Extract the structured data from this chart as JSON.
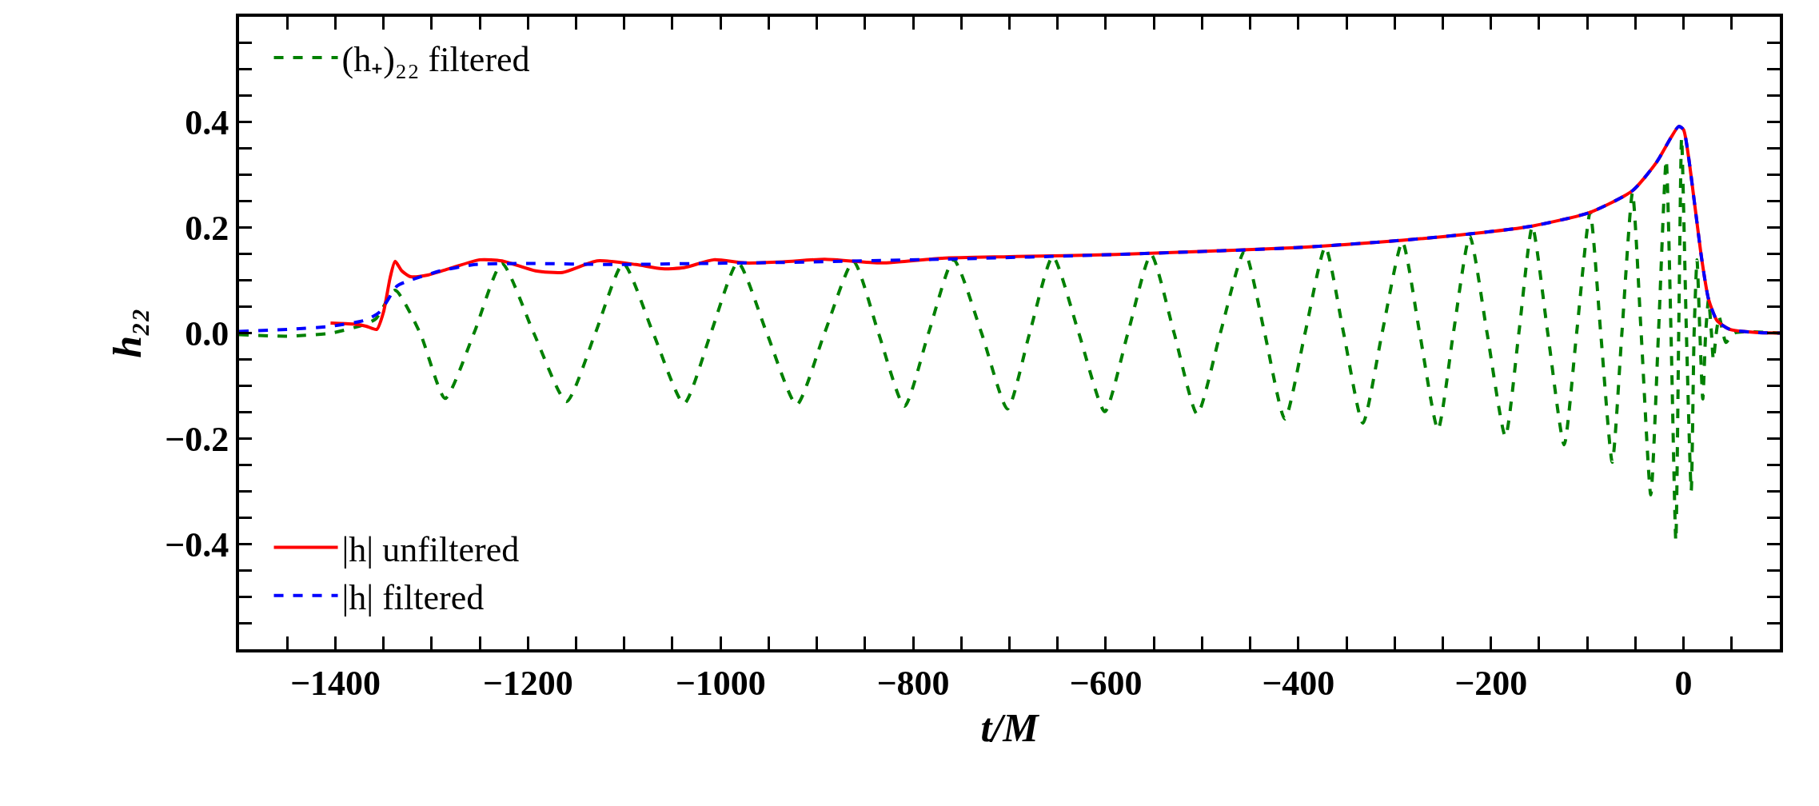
{
  "chart_data": {
    "type": "line",
    "xlabel": "t/M",
    "ylabel": "h₂₂",
    "xlim": [
      -1500,
      100
    ],
    "ylim": [
      -0.6,
      0.6
    ],
    "xticks": [
      {
        "value": -1450,
        "label": null
      },
      {
        "value": -1350,
        "label": null
      },
      {
        "value": -1300,
        "label": null
      },
      {
        "value": -1250,
        "label": null
      },
      {
        "value": -1150,
        "label": null
      },
      {
        "value": -1100,
        "label": null
      },
      {
        "value": -1050,
        "label": null
      },
      {
        "value": -950,
        "label": null
      },
      {
        "value": -900,
        "label": null
      },
      {
        "value": -850,
        "label": null
      },
      {
        "value": -750,
        "label": null
      },
      {
        "value": -700,
        "label": null
      },
      {
        "value": -650,
        "label": null
      },
      {
        "value": -550,
        "label": null
      },
      {
        "value": -500,
        "label": null
      },
      {
        "value": -450,
        "label": null
      },
      {
        "value": -350,
        "label": null
      },
      {
        "value": -300,
        "label": null
      },
      {
        "value": -250,
        "label": null
      },
      {
        "value": -150,
        "label": null
      },
      {
        "value": -100,
        "label": null
      },
      {
        "value": -50,
        "label": null
      },
      {
        "value": 50,
        "label": null
      },
      {
        "value": -1400,
        "label": "−1400"
      },
      {
        "value": -1200,
        "label": "−1200"
      },
      {
        "value": -1000,
        "label": "−1000"
      },
      {
        "value": -800,
        "label": "−800"
      },
      {
        "value": -600,
        "label": "−600"
      },
      {
        "value": -400,
        "label": "−400"
      },
      {
        "value": -200,
        "label": "−200"
      },
      0
    ],
    "yticks": [
      {
        "value": -0.55,
        "label": null
      },
      {
        "value": -0.5,
        "label": null
      },
      {
        "value": -0.45,
        "label": null
      },
      {
        "value": -0.35,
        "label": null
      },
      {
        "value": -0.3,
        "label": null
      },
      {
        "value": -0.25,
        "label": null
      },
      {
        "value": -0.15,
        "label": null
      },
      {
        "value": -0.1,
        "label": null
      },
      {
        "value": -0.05,
        "label": null
      },
      {
        "value": 0.05,
        "label": null
      },
      {
        "value": 0.1,
        "label": null
      },
      {
        "value": 0.15,
        "label": null
      },
      {
        "value": 0.25,
        "label": null
      },
      {
        "value": 0.3,
        "label": null
      },
      {
        "value": 0.35,
        "label": null
      },
      {
        "value": 0.45,
        "label": null
      },
      {
        "value": 0.5,
        "label": null
      },
      {
        "value": 0.55,
        "label": null
      },
      {
        "value": -0.4,
        "label": "−0.4"
      },
      {
        "value": -0.2,
        "label": "−0.2"
      },
      {
        "value": 0,
        "label": "0.0"
      },
      0.2,
      0.4
    ],
    "legend": "left",
    "marker": "none",
    "series": [
      {
        "name": "(h₊)₂₂ filtered",
        "color": "#008000",
        "line_style": "dashed",
        "x": [
          -1500,
          -1450,
          -1404,
          -1372,
          -1358,
          -1338,
          -1312,
          -1286,
          -1256,
          -1227,
          -1194,
          -1160,
          -1130,
          -1101,
          -1070,
          -1038,
          -1010,
          -982,
          -952,
          -921,
          -892,
          -862,
          -836,
          -809,
          -784,
          -758,
          -729,
          -702,
          -679,
          -655,
          -628,
          -601,
          -577,
          -553,
          -529,
          -505,
          -481,
          -456,
          -435,
          -414,
          -393,
          -372,
          -353,
          -333,
          -313,
          -292,
          -274,
          -255,
          -239,
          -222,
          -204,
          -185,
          -171,
          -157,
          -141,
          -124,
          -111,
          -97,
          -86,
          -74,
          -64,
          -53,
          -44,
          -34,
          -26,
          -18,
          -13,
          -8,
          -5,
          -2,
          3,
          8,
          11,
          14,
          17,
          20,
          23,
          26,
          29,
          31,
          34,
          37,
          41,
          44,
          53,
          100
        ],
        "values": [
          -0.003,
          -0.006,
          0,
          0.015,
          0.027,
          0.081,
          0,
          -0.124,
          0,
          0.132,
          0,
          -0.13,
          0,
          0.132,
          0,
          -0.134,
          0,
          0.134,
          0,
          -0.136,
          0,
          0.136,
          0,
          -0.139,
          0,
          0.139,
          0,
          -0.144,
          0,
          0.145,
          0,
          -0.149,
          0,
          0.149,
          0,
          -0.154,
          0,
          0.155,
          0,
          -0.163,
          0,
          0.163,
          0,
          -0.171,
          0,
          0.173,
          0,
          -0.183,
          0,
          0.184,
          0,
          -0.196,
          0,
          0.202,
          0,
          -0.212,
          0,
          0.229,
          0,
          -0.245,
          0,
          0.266,
          0,
          -0.307,
          0,
          0.328,
          0,
          -0.394,
          0,
          0.37,
          0,
          -0.299,
          0,
          0.139,
          0,
          -0.125,
          0,
          0.064,
          0,
          -0.051,
          0,
          0.031,
          0,
          -0.018,
          0,
          0
        ]
      },
      {
        "name": "|h| unfiltered",
        "color": "#ff0000",
        "line_style": "solid",
        "x": [
          -1405,
          -1381,
          -1368,
          -1357,
          -1350,
          -1343,
          -1338,
          -1331,
          -1322,
          -1304,
          -1282,
          -1250,
          -1227,
          -1192,
          -1164,
          -1128,
          -1088,
          -1061,
          -1038,
          -1007,
          -975,
          -935,
          -892,
          -833,
          -770,
          -700,
          -589,
          -403,
          -292,
          -222,
          -157,
          -97,
          -53,
          -28,
          -13,
          -5,
          0,
          5,
          12,
          19,
          26,
          35,
          48,
          75,
          100
        ],
        "values": [
          0.019,
          0.017,
          0.013,
          0.007,
          0.04,
          0.106,
          0.136,
          0.118,
          0.107,
          0.11,
          0.122,
          0.139,
          0.137,
          0.118,
          0.115,
          0.137,
          0.13,
          0.122,
          0.124,
          0.139,
          0.133,
          0.135,
          0.14,
          0.133,
          0.142,
          0.145,
          0.149,
          0.162,
          0.176,
          0.188,
          0.203,
          0.229,
          0.27,
          0.324,
          0.371,
          0.392,
          0.386,
          0.337,
          0.238,
          0.139,
          0.064,
          0.023,
          0.007,
          0.001,
          0
        ]
      },
      {
        "name": "|h| filtered",
        "color": "#0000ff",
        "line_style": "dashed",
        "x": [
          -1500,
          -1449,
          -1404,
          -1368,
          -1354,
          -1336,
          -1327,
          -1291,
          -1255,
          -1201,
          -1110,
          -1020,
          -935,
          -770,
          -589,
          -403,
          -292,
          -222,
          -157,
          -97,
          -53,
          -28,
          -13,
          -5,
          0,
          5,
          12,
          19,
          26,
          35,
          48,
          75,
          100
        ],
        "values": [
          0.003,
          0.007,
          0.013,
          0.025,
          0.04,
          0.089,
          0.097,
          0.118,
          0.13,
          0.132,
          0.13,
          0.132,
          0.134,
          0.14,
          0.149,
          0.162,
          0.176,
          0.188,
          0.203,
          0.229,
          0.27,
          0.324,
          0.371,
          0.392,
          0.386,
          0.337,
          0.238,
          0.139,
          0.064,
          0.023,
          0.007,
          0.001,
          0
        ]
      }
    ]
  }
}
